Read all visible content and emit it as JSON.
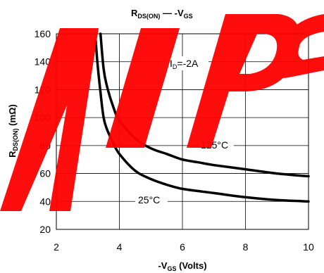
{
  "chart_data": {
    "type": "line",
    "title": {
      "main": "R",
      "sub": "DS(ON)",
      "sep": " — ",
      "main2": "-V",
      "sub2": "GS"
    },
    "xlabel": {
      "main": "-V",
      "sub": "GS",
      "rest": " (Volts)"
    },
    "ylabel": {
      "main": "R",
      "sub": "DS(ON)",
      "rest": " (mΩ)"
    },
    "xlim": [
      2,
      10
    ],
    "ylim": [
      20,
      160
    ],
    "x_ticks": [
      "2",
      "4",
      "6",
      "8",
      "10"
    ],
    "y_ticks": [
      "20",
      "40",
      "60",
      "80",
      "100",
      "120",
      "140",
      "160"
    ],
    "grid": true,
    "annotations": {
      "id_label": {
        "main": "I",
        "sub": "D",
        "rest": "=-2A"
      }
    },
    "series": [
      {
        "name": "125°C",
        "points": [
          [
            3.4,
            160
          ],
          [
            3.5,
            135
          ],
          [
            3.6,
            123
          ],
          [
            3.8,
            108
          ],
          [
            4.0,
            98
          ],
          [
            4.5,
            85
          ],
          [
            5.0,
            78
          ],
          [
            5.5,
            74
          ],
          [
            6.0,
            70
          ],
          [
            6.5,
            68
          ],
          [
            7.0,
            66
          ],
          [
            8.0,
            63
          ],
          [
            9.0,
            60
          ],
          [
            10.0,
            58
          ]
        ]
      },
      {
        "name": "25°C",
        "points": [
          [
            3.25,
            155
          ],
          [
            3.3,
            140
          ],
          [
            3.4,
            118
          ],
          [
            3.5,
            100
          ],
          [
            3.6,
            92
          ],
          [
            3.8,
            82
          ],
          [
            4.0,
            74
          ],
          [
            4.5,
            62
          ],
          [
            5.0,
            56
          ],
          [
            5.5,
            52
          ],
          [
            6.0,
            49
          ],
          [
            7.0,
            46
          ],
          [
            8.0,
            43
          ],
          [
            9.0,
            41
          ],
          [
            10.0,
            40
          ]
        ]
      }
    ]
  },
  "watermark": {
    "text": "AiPC",
    "color": "#ff0000"
  }
}
